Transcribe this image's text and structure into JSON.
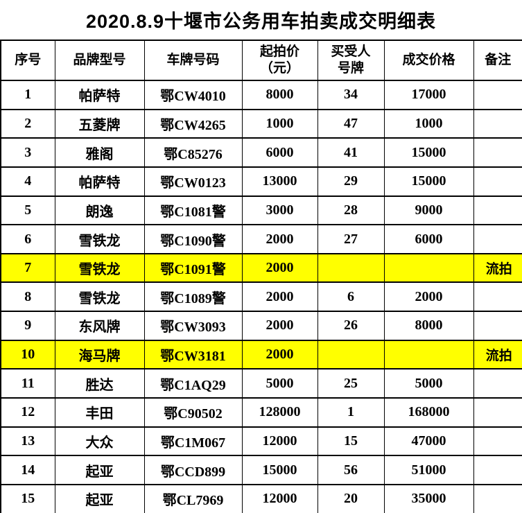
{
  "title": "2020.8.9十堰市公务用车拍卖成交明细表",
  "colors": {
    "highlight_row": "#FFFF00",
    "remark_text": "#FF0000",
    "border": "#000000",
    "background": "#FFFFFF"
  },
  "table": {
    "headers": [
      {
        "line1": "序号"
      },
      {
        "line1": "品牌型号"
      },
      {
        "line1": "车牌号码"
      },
      {
        "line1": "起拍价",
        "line2": "（元）"
      },
      {
        "line1": "买受人",
        "line2": "号牌"
      },
      {
        "line1": "成交价格"
      },
      {
        "line1": "备注"
      }
    ],
    "rows": [
      {
        "highlighted": false,
        "cells": [
          "1",
          "帕萨特",
          "鄂CW4010",
          "8000",
          "34",
          "17000",
          ""
        ]
      },
      {
        "highlighted": false,
        "cells": [
          "2",
          "五菱牌",
          "鄂CW4265",
          "1000",
          "47",
          "1000",
          ""
        ]
      },
      {
        "highlighted": false,
        "cells": [
          "3",
          "雅阁",
          "鄂C85276",
          "6000",
          "41",
          "15000",
          ""
        ]
      },
      {
        "highlighted": false,
        "cells": [
          "4",
          "帕萨特",
          "鄂CW0123",
          "13000",
          "29",
          "15000",
          ""
        ]
      },
      {
        "highlighted": false,
        "cells": [
          "5",
          "朗逸",
          "鄂C1081警",
          "3000",
          "28",
          "9000",
          ""
        ]
      },
      {
        "highlighted": false,
        "cells": [
          "6",
          "雪铁龙",
          "鄂C1090警",
          "2000",
          "27",
          "6000",
          ""
        ]
      },
      {
        "highlighted": true,
        "cells": [
          "7",
          "雪铁龙",
          "鄂C1091警",
          "2000",
          "",
          "",
          "流拍"
        ]
      },
      {
        "highlighted": false,
        "cells": [
          "8",
          "雪铁龙",
          "鄂C1089警",
          "2000",
          "6",
          "2000",
          ""
        ]
      },
      {
        "highlighted": false,
        "cells": [
          "9",
          "东风牌",
          "鄂CW3093",
          "2000",
          "26",
          "8000",
          ""
        ]
      },
      {
        "highlighted": true,
        "cells": [
          "10",
          "海马牌",
          "鄂CW3181",
          "2000",
          "",
          "",
          "流拍"
        ]
      },
      {
        "highlighted": false,
        "cells": [
          "11",
          "胜达",
          "鄂C1AQ29",
          "5000",
          "25",
          "5000",
          ""
        ]
      },
      {
        "highlighted": false,
        "cells": [
          "12",
          "丰田",
          "鄂C90502",
          "128000",
          "1",
          "168000",
          ""
        ]
      },
      {
        "highlighted": false,
        "cells": [
          "13",
          "大众",
          "鄂C1M067",
          "12000",
          "15",
          "47000",
          ""
        ]
      },
      {
        "highlighted": false,
        "cells": [
          "14",
          "起亚",
          "鄂CCD899",
          "15000",
          "56",
          "51000",
          ""
        ]
      },
      {
        "highlighted": false,
        "cells": [
          "15",
          "起亚",
          "鄂CL7969",
          "12000",
          "20",
          "35000",
          ""
        ]
      }
    ]
  }
}
